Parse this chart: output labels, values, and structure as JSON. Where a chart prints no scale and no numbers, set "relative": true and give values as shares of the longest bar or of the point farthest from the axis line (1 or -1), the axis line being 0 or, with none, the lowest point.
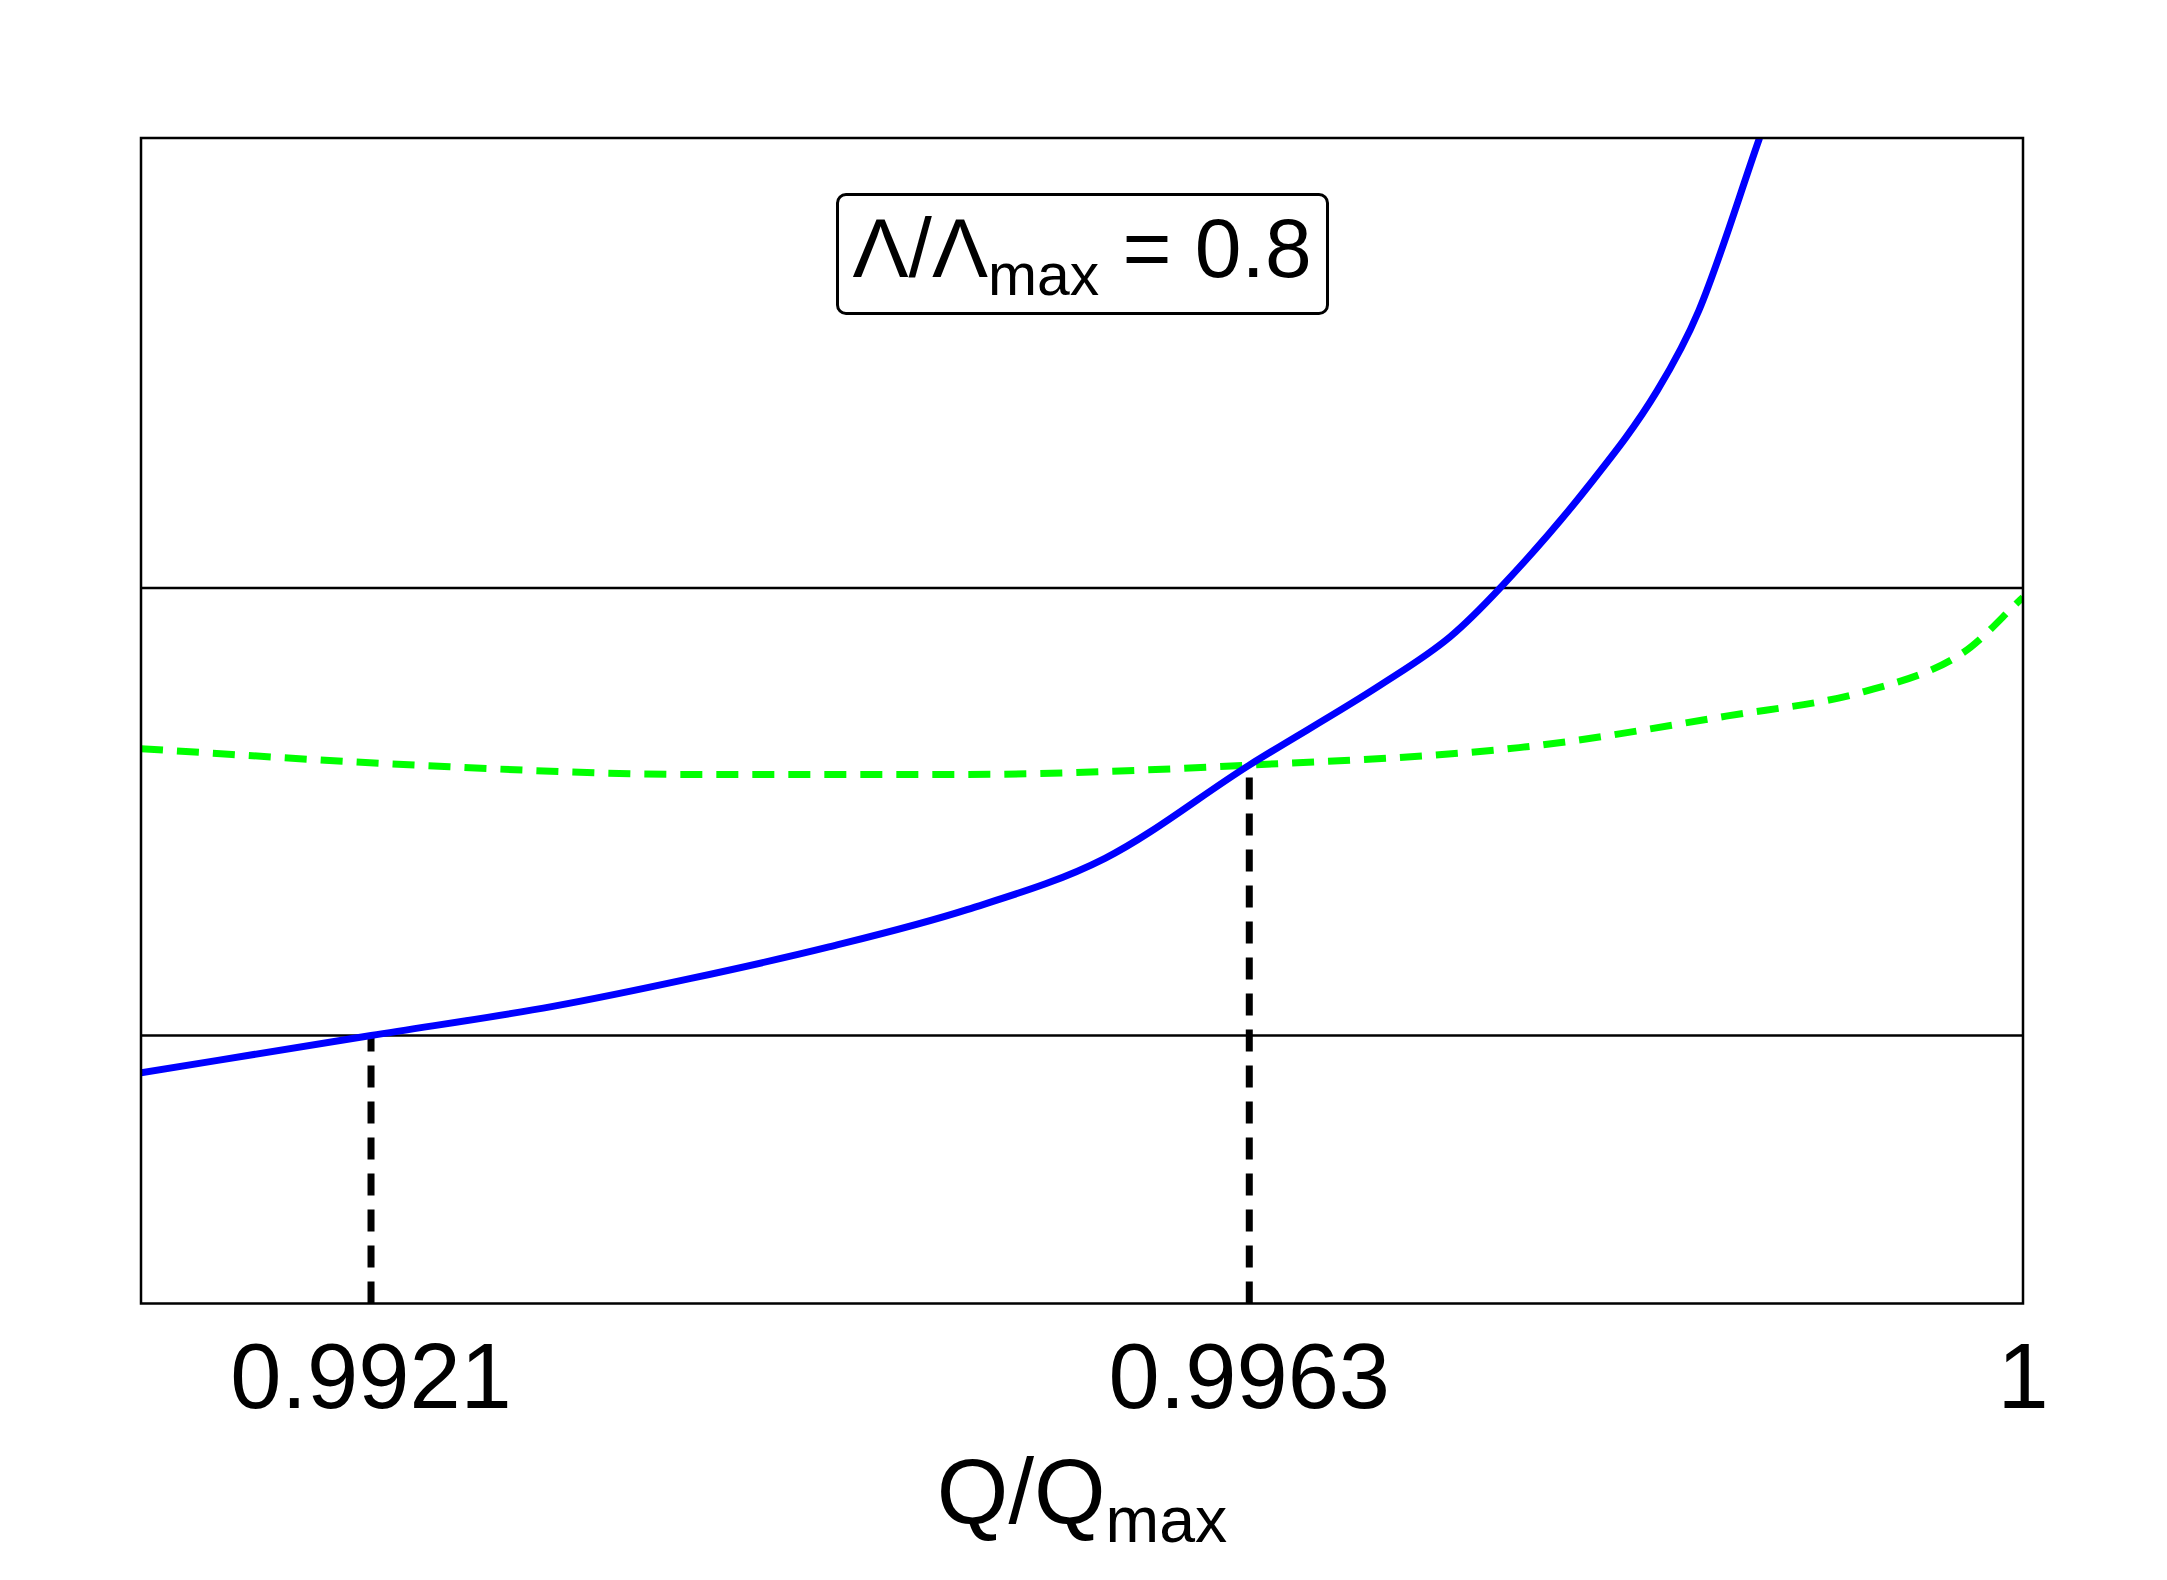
{
  "chart_data": {
    "type": "line",
    "relative": true,
    "xlabel": "Q/Q$_{max}$",
    "annotations": [
      "Λ/Λ$_{max}$ = 0.8"
    ],
    "xlim": [
      0.991,
      1
    ],
    "xticks": [
      0.9921,
      0.9963,
      1
    ],
    "grid": false,
    "legend": false,
    "marker": "none",
    "series": [
      {
        "color": "#0000ff",
        "line_style": "solid",
        "x": [
          0.991,
          0.9921,
          0.99297,
          0.99363,
          0.99429,
          0.99495,
          0.99561,
          0.9963,
          0.99693,
          0.99726,
          0.9975,
          0.99792,
          0.99825,
          0.99845,
          0.99874
        ],
        "values": [
          0.198,
          0.23,
          0.255,
          0.279,
          0.306,
          0.338,
          0.382,
          0.462,
          0.531,
          0.572,
          0.614,
          0.701,
          0.783,
          0.852,
          1
        ]
      },
      {
        "color": "#00ff00",
        "line_style": "dashed",
        "x": [
          0.991,
          0.99231,
          0.99363,
          0.99495,
          0.9963,
          0.99759,
          0.99858,
          0.99924,
          0.99971,
          1
        ],
        "values": [
          0.476,
          0.462,
          0.454,
          0.454,
          0.462,
          0.477,
          0.504,
          0.525,
          0.558,
          0.606
        ]
      }
    ],
    "ref_lines": [
      {
        "axis": "y",
        "value": 0.614,
        "color": "#000000",
        "line_style": "solid"
      },
      {
        "axis": "y",
        "value": 0.23,
        "color": "#000000",
        "line_style": "solid"
      },
      {
        "axis": "x",
        "value": 0.9921,
        "color": "#000000",
        "line_style": "dashed"
      },
      {
        "axis": "x",
        "value": 0.9963,
        "color": "#000000",
        "line_style": "dashed"
      }
    ]
  }
}
